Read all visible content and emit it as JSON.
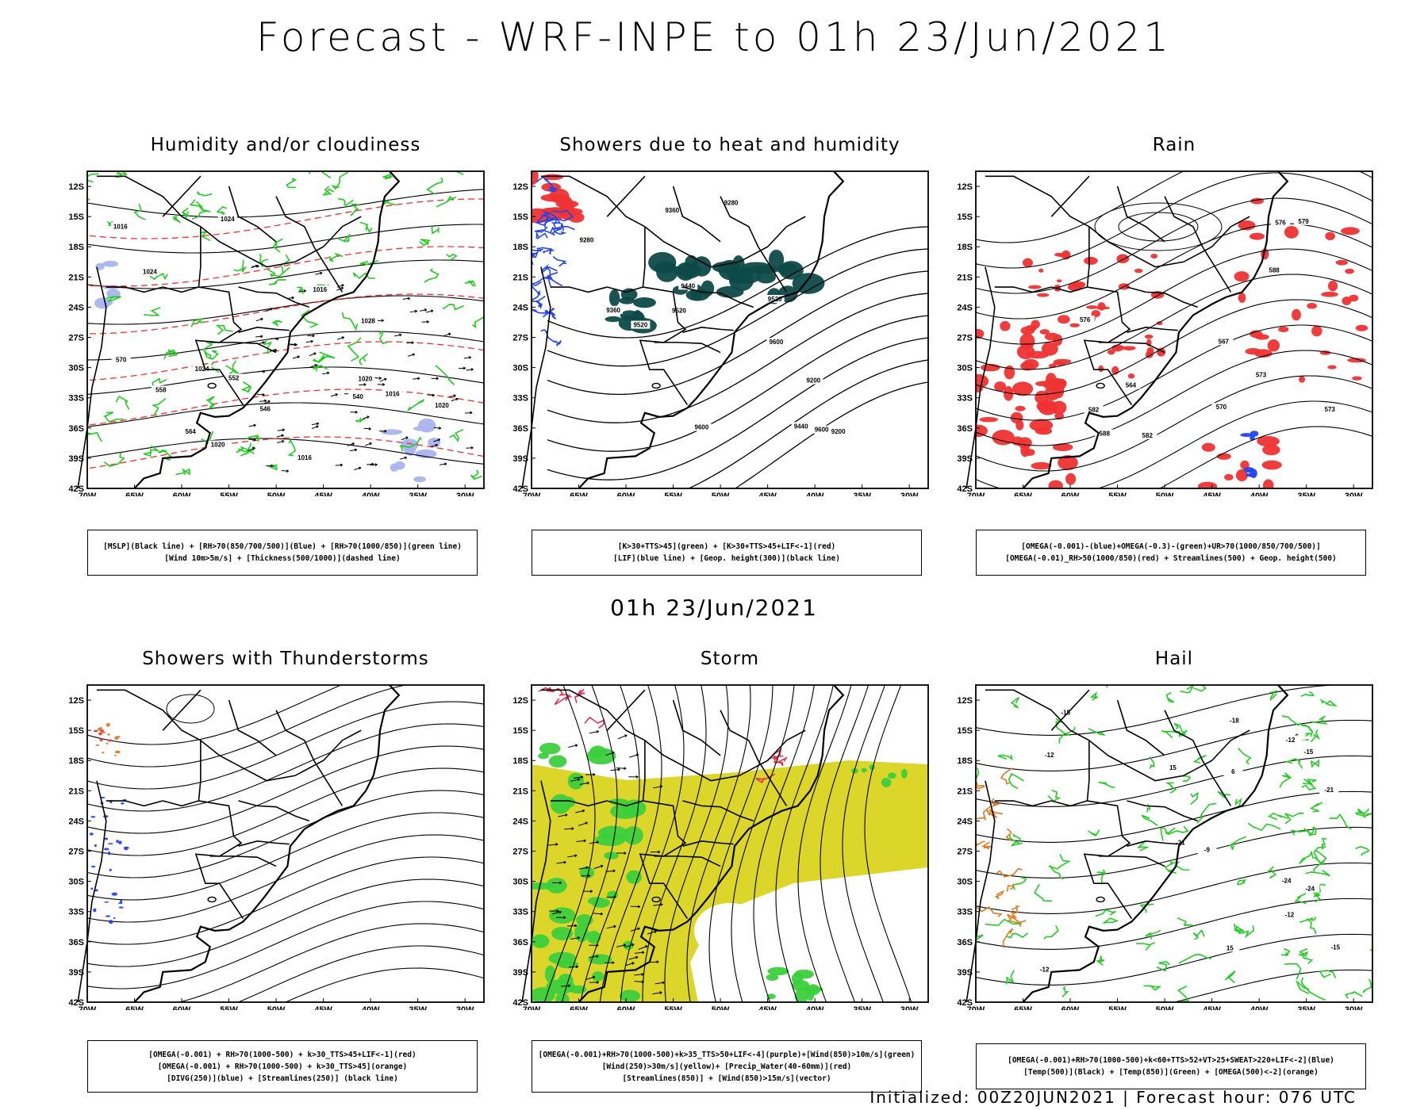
{
  "title": "Forecast - WRF-INPE to 01h 23/Jun/2021",
  "mid_title": "01h 23/Jun/2021",
  "footer": "Initialized: 00Z20JUN2021 | Forecast hour: 076 UTC",
  "axes": {
    "lat_ticks": [
      "12S",
      "15S",
      "18S",
      "21S",
      "24S",
      "27S",
      "30S",
      "33S",
      "36S",
      "39S",
      "42S"
    ],
    "lon_ticks": [
      "70W",
      "65W",
      "60W",
      "55W",
      "50W",
      "45W",
      "40W",
      "35W",
      "30W"
    ]
  },
  "colors": {
    "green": "#22cc22",
    "red": "#ee3333",
    "blue": "#2244ee",
    "teal": "#0e4a48",
    "yellow": "#dcd52a",
    "light_green": "#3ccf3c",
    "orange": "#e07a20",
    "light_blue": "#aab4ee"
  },
  "panels": [
    {
      "title": "Humidity and/or cloudiness",
      "legend": [
        "[MSLP](Black line) + [RH>70(850/700/500)](Blue) + [RH>70(1000/850)](green line)",
        "[Wind 10m>5m/s] + [Thickness(500/1000)](dashed line)"
      ],
      "contour_labels": [
        "1016",
        "1016",
        "1016",
        "1016",
        "1020",
        "1020",
        "1020",
        "1024",
        "1024",
        "1024",
        "1028",
        "570",
        "564",
        "558",
        "552",
        "546",
        "540"
      ]
    },
    {
      "title": "Showers due to heat and humidity",
      "legend": [
        "[K>30+TTS>45](green) + [K>30+TTS>45+LIF<-1](red)",
        "[LIF](blue line) + [Geop. height(300)](black line)"
      ],
      "contour_labels": [
        "9600",
        "9600",
        "9600",
        "9520",
        "9520",
        "9520",
        "9440",
        "9440",
        "9360",
        "9360",
        "9280",
        "9280",
        "9200",
        "9200"
      ]
    },
    {
      "title": "Rain",
      "legend": [
        "[OMEGA(-0.001)-(blue)+OMEGA(-0.3)-(green)+UR>70(1000/850/700/500)]",
        "[OMEGA(-0.01)_RH>50(1000/850)(red) + Streamlines(500) + Geop. height(500)"
      ],
      "contour_labels": [
        "588",
        "588",
        "582",
        "582",
        "579",
        "576",
        "573",
        "573",
        "570",
        "567",
        "564",
        "576"
      ]
    },
    {
      "title": "Showers with Thunderstorms",
      "legend": [
        "[OMEGA(-0.001) + RH>70(1000-500) + k>30_TTS>45+LIF<-1](red)",
        "[OMEGA(-0.001) + RH>70(1000-500) + k>30_TTS>45](orange)",
        "[DIVG(250)](blue) + [Streamlines(250)] (black line)"
      ],
      "contour_labels": []
    },
    {
      "title": "Storm",
      "legend": [
        "[OMEGA(-0.001)+RH>70(1000-500)+k>35_TTS>50+LIF<-4](purple)+[Wind(850)>10m/s](green)",
        "[Wind(250)>30m/s](yellow)+ [Precip_Water(40-60mm)](red)",
        "[Streamlines(850)] + [Wind(850)>15m/s](vector)"
      ],
      "contour_labels": []
    },
    {
      "title": "Hail",
      "legend": [
        "[OMEGA(-0.001)+RH>70(1000-500)+k<60+TTS>52+VT>25+SWEAT>220+LIF<-2](Blue)",
        "[Temp(500)](Black) + [Temp(850)](Green) + [OMEGA(500)<-2](orange)"
      ],
      "contour_labels": [
        "-6",
        "-9",
        "-12",
        "-12",
        "-15",
        "-15",
        "-18",
        "-21",
        "-24",
        "-24",
        "-21",
        "-15",
        "-12",
        "-12",
        "6",
        "15",
        "15"
      ]
    }
  ]
}
